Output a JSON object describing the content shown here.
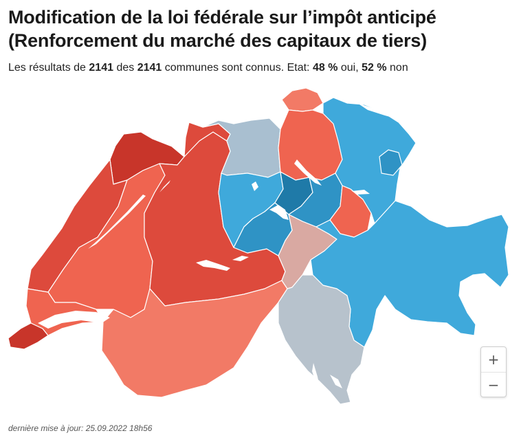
{
  "title_line1": "Modification de la loi fédérale sur l’impôt anticipé",
  "title_line2": "(Renforcement du marché des capitaux de tiers)",
  "summary": {
    "prefix": "Les résultats de ",
    "counted": "2141",
    "middle": " des ",
    "total": "2141",
    "suffix": " communes sont connus. Etat: ",
    "yes_pct": "48 %",
    "yes_label": " oui, ",
    "no_pct": "52 %",
    "no_label": " non"
  },
  "zoom": {
    "in_label": "+",
    "out_label": "−"
  },
  "footer": "dernière mise à jour: 25.09.2022 18h56",
  "colors": {
    "yes_strong": "#c8352a",
    "yes_medium": "#dd4a3c",
    "yes_light": "#ef6450",
    "yes_pale": "#f27a66",
    "neutral_warm": "#d9a9a2",
    "neutral_cool": "#b7c2cc",
    "neutral_blue": "#a9bfd0",
    "no_light": "#3fa9db",
    "no_medium": "#2f93c5",
    "no_strong": "#1f7aa8"
  }
}
